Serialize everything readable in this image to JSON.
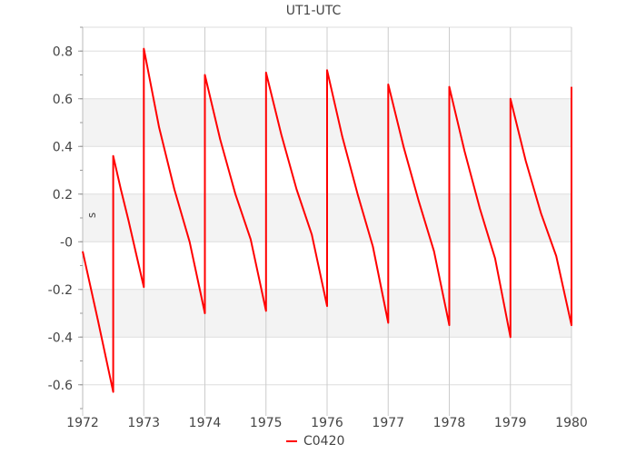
{
  "chart_data": {
    "type": "line",
    "title": "UT1-UTC",
    "xlabel": "",
    "ylabel": "s",
    "xlim": [
      1972,
      1980
    ],
    "ylim": [
      -0.7,
      0.9
    ],
    "xticks": [
      1972,
      1973,
      1974,
      1975,
      1976,
      1977,
      1978,
      1979,
      1980
    ],
    "xtick_labels": [
      "1972",
      "1973",
      "1974",
      "1975",
      "1976",
      "1977",
      "1978",
      "1979",
      "1980"
    ],
    "yticks": [
      -0.6,
      -0.4,
      -0.2,
      0,
      0.2,
      0.4,
      0.6,
      0.8
    ],
    "ytick_labels": [
      "-0.6",
      "-0.4",
      "-0.2",
      "-0",
      "0.2",
      "0.4",
      "0.6",
      "0.8"
    ],
    "grid": true,
    "legend_position": "bottom",
    "series": [
      {
        "name": "C0420",
        "color": "#ff0000",
        "points": [
          [
            1972.0,
            -0.04
          ],
          [
            1972.25,
            -0.33
          ],
          [
            1972.5,
            -0.63
          ],
          [
            1972.5,
            0.36
          ],
          [
            1972.625,
            0.22
          ],
          [
            1972.75,
            0.09
          ],
          [
            1972.875,
            -0.05
          ],
          [
            1973.0,
            -0.19
          ],
          [
            1973.0,
            0.81
          ],
          [
            1973.25,
            0.48
          ],
          [
            1973.5,
            0.22
          ],
          [
            1973.75,
            0.0
          ],
          [
            1974.0,
            -0.3
          ],
          [
            1974.0,
            0.7
          ],
          [
            1974.25,
            0.43
          ],
          [
            1974.5,
            0.2
          ],
          [
            1974.75,
            0.01
          ],
          [
            1975.0,
            -0.29
          ],
          [
            1975.0,
            0.71
          ],
          [
            1975.25,
            0.45
          ],
          [
            1975.5,
            0.22
          ],
          [
            1975.75,
            0.03
          ],
          [
            1976.0,
            -0.27
          ],
          [
            1976.0,
            0.72
          ],
          [
            1976.25,
            0.44
          ],
          [
            1976.5,
            0.2
          ],
          [
            1976.75,
            -0.02
          ],
          [
            1977.0,
            -0.34
          ],
          [
            1977.0,
            0.66
          ],
          [
            1977.25,
            0.4
          ],
          [
            1977.5,
            0.17
          ],
          [
            1977.75,
            -0.04
          ],
          [
            1978.0,
            -0.35
          ],
          [
            1978.0,
            0.65
          ],
          [
            1978.25,
            0.38
          ],
          [
            1978.5,
            0.14
          ],
          [
            1978.75,
            -0.07
          ],
          [
            1979.0,
            -0.4
          ],
          [
            1979.0,
            0.6
          ],
          [
            1979.25,
            0.34
          ],
          [
            1979.5,
            0.12
          ],
          [
            1979.75,
            -0.06
          ],
          [
            1980.0,
            -0.35
          ],
          [
            1980.0,
            0.65
          ]
        ]
      }
    ]
  }
}
